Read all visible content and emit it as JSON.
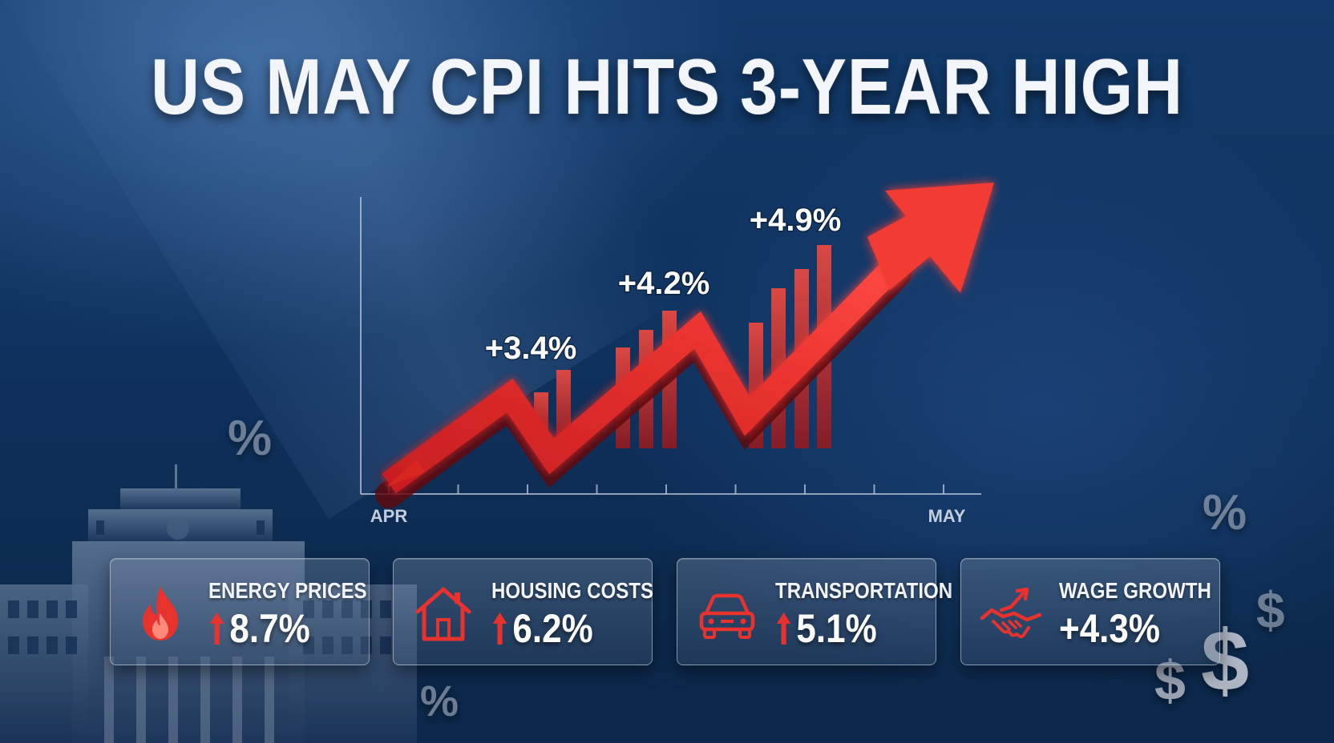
{
  "headline": "US MAY CPI HITS 3-YEAR HIGH",
  "colors": {
    "accent_red": "#e8322e",
    "background_navy": "#0f325e",
    "text_white": "#f2f5fa"
  },
  "chart_data": {
    "type": "line",
    "title": "",
    "x_labels": [
      "APR",
      "MAY"
    ],
    "annotations": [
      "+3.4%",
      "+4.2%",
      "+4.9%"
    ],
    "trend": "rising",
    "grid": false,
    "bars_in_background": true
  },
  "decorations": {
    "percent_symbol": "%",
    "dollar_symbol": "$"
  },
  "cards": [
    {
      "icon": "flame-icon",
      "label": "ENERGY PRICES",
      "value": "8.7%",
      "show_arrow": true
    },
    {
      "icon": "house-icon",
      "label": "HOUSING COSTS",
      "value": "6.2%",
      "show_arrow": true
    },
    {
      "icon": "car-icon",
      "label": "TRANSPORTATION",
      "value": "5.1%",
      "show_arrow": true
    },
    {
      "icon": "handshake-icon",
      "label": "WAGE GROWTH",
      "value": "+4.3%",
      "show_arrow": false
    }
  ]
}
